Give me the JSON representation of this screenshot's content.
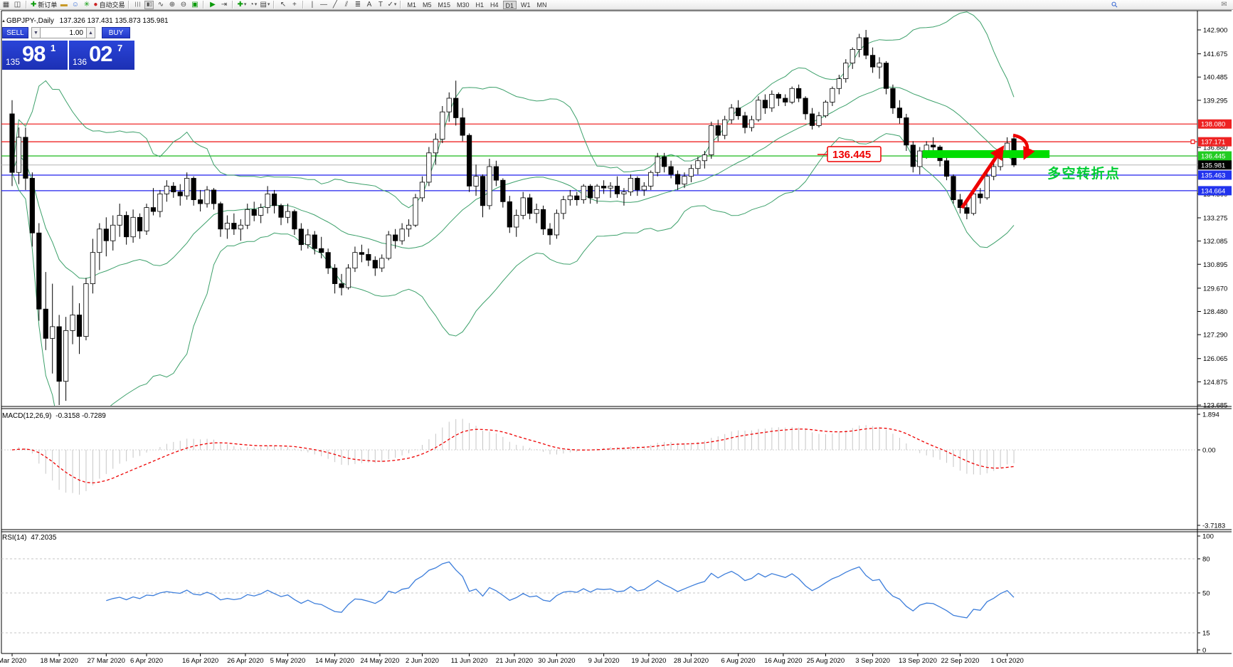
{
  "toolbar": {
    "new_order_label": "新订单",
    "autotrading_label": "自动交易",
    "timeframes": [
      "M1",
      "M5",
      "M15",
      "M30",
      "H1",
      "H4",
      "D1",
      "W1",
      "MN"
    ],
    "selected_timeframe": "D1"
  },
  "trade_panel": {
    "sell_label": "SELL",
    "buy_label": "BUY",
    "volume": "1.00",
    "sell_price_small": "135",
    "sell_price_big": "98",
    "sell_price_sup": "1",
    "buy_price_small": "136",
    "buy_price_big": "02",
    "buy_price_sup": "7"
  },
  "chart": {
    "symbol_period": "GBPJPY-,Daily",
    "ohlc_line": "137.326 137.431 135.873 135.981",
    "type": "candlestick",
    "price_axis": [
      "142.900",
      "141.675",
      "140.485",
      "139.295",
      "136.880",
      "134.500",
      "133.275",
      "132.085",
      "130.895",
      "129.670",
      "128.480",
      "127.290",
      "126.065",
      "124.875",
      "123.685"
    ],
    "levels": [
      {
        "price": 138.08,
        "label": "138.080",
        "line_color": "#ee1111",
        "badge": "#ee2222",
        "handle": false
      },
      {
        "price": 137.171,
        "label": "137.171",
        "line_color": "#ee1111",
        "badge": "#ee2222",
        "handle": true
      },
      {
        "price": 136.445,
        "label": "136.445",
        "line_color": "#00b000",
        "badge": "#22cc22",
        "handle": false
      },
      {
        "price": 135.463,
        "label": "135.463",
        "line_color": "#2222ee",
        "badge": "#2233ee",
        "handle": false
      },
      {
        "price": 134.664,
        "label": "134.664",
        "line_color": "#2222ee",
        "badge": "#2233ee",
        "handle": false
      }
    ],
    "current": {
      "price": 135.981,
      "label": "135.981",
      "line_color": "#b4b4b4",
      "badge": "#000000"
    },
    "time_axis": [
      [
        "Mar 2020",
        0
      ],
      [
        "18 Mar 2020",
        7
      ],
      [
        "27 Mar 2020",
        14
      ],
      [
        "6 Apr 2020",
        20
      ],
      [
        "16 Apr 2020",
        28
      ],
      [
        "26 Apr 2020",
        34.7
      ],
      [
        "5 May 2020",
        41
      ],
      [
        "14 May 2020",
        48
      ],
      [
        "24 May 2020",
        54.7
      ],
      [
        "2 Jun 2020",
        61
      ],
      [
        "11 Jun 2020",
        68
      ],
      [
        "21 Jun 2020",
        74.7
      ],
      [
        "30 Jun 2020",
        81
      ],
      [
        "9 Jul 2020",
        88
      ],
      [
        "19 Jul 2020",
        94.7
      ],
      [
        "28 Jul 2020",
        101
      ],
      [
        "6 Aug 2020",
        108
      ],
      [
        "16 Aug 2020",
        114.7
      ],
      [
        "25 Aug 2020",
        121
      ],
      [
        "3 Sep 2020",
        128
      ],
      [
        "13 Sep 2020",
        134.7
      ],
      [
        "22 Sep 2020",
        141
      ],
      [
        "1 Oct 2020",
        148
      ]
    ],
    "bollinger": {
      "period": 20,
      "deviation": 2,
      "color": "#3ca06a"
    },
    "candles": [
      [
        "09 Mar",
        138.6,
        139.3,
        134.9,
        135.6
      ],
      [
        "10 Mar",
        135.6,
        137.9,
        135.0,
        137.4
      ],
      [
        "11 Mar",
        137.4,
        137.9,
        134.7,
        135.3
      ],
      [
        "12 Mar",
        135.3,
        135.6,
        131.8,
        132.5
      ],
      [
        "13 Mar",
        132.5,
        133.0,
        128.0,
        128.6
      ],
      [
        "16 Mar",
        128.6,
        130.5,
        126.5,
        127.1
      ],
      [
        "17 Mar",
        127.1,
        129.9,
        125.3,
        127.7
      ],
      [
        "18 Mar",
        127.7,
        128.3,
        123.685,
        124.9
      ],
      [
        "19 Mar",
        124.9,
        128.2,
        123.9,
        127.5
      ],
      [
        "20 Mar",
        127.5,
        129.8,
        126.8,
        128.3
      ],
      [
        "23 Mar",
        128.3,
        128.9,
        126.3,
        127.2
      ],
      [
        "24 Mar",
        127.2,
        130.2,
        127.0,
        129.9
      ],
      [
        "25 Mar",
        129.9,
        132.2,
        129.4,
        131.5
      ],
      [
        "26 Mar",
        131.5,
        133.0,
        130.6,
        132.7
      ],
      [
        "27 Mar",
        132.7,
        133.3,
        131.3,
        132.1
      ],
      [
        "30 Mar",
        132.1,
        133.4,
        131.6,
        132.9
      ],
      [
        "31 Mar",
        132.9,
        134.0,
        132.3,
        133.4
      ],
      [
        "01 Apr",
        133.4,
        133.6,
        131.9,
        132.3
      ],
      [
        "02 Apr",
        132.3,
        133.7,
        132.0,
        133.3
      ],
      [
        "03 Apr",
        133.3,
        133.5,
        132.2,
        132.6
      ],
      [
        "06 Apr",
        132.6,
        134.0,
        132.4,
        133.8
      ],
      [
        "07 Apr",
        133.8,
        134.8,
        133.4,
        133.6
      ],
      [
        "08 Apr",
        133.6,
        134.7,
        133.3,
        134.5
      ],
      [
        "09 Apr",
        134.5,
        135.2,
        134.1,
        134.9
      ],
      [
        "10 Apr",
        134.9,
        135.1,
        134.3,
        134.6
      ],
      [
        "13 Apr",
        134.6,
        135.0,
        133.9,
        134.4
      ],
      [
        "14 Apr",
        134.4,
        135.6,
        134.2,
        135.3
      ],
      [
        "15 Apr",
        135.3,
        135.4,
        133.9,
        134.2
      ],
      [
        "16 Apr",
        134.2,
        134.7,
        133.6,
        134.0
      ],
      [
        "17 Apr",
        134.0,
        134.9,
        133.8,
        134.7
      ],
      [
        "20 Apr",
        134.7,
        134.8,
        133.7,
        134.0
      ],
      [
        "21 Apr",
        134.0,
        134.1,
        132.3,
        132.7
      ],
      [
        "22 Apr",
        132.7,
        133.4,
        132.2,
        133.0
      ],
      [
        "23 Apr",
        133.0,
        133.5,
        132.4,
        132.7
      ],
      [
        "24 Apr",
        132.7,
        133.2,
        132.1,
        132.9
      ],
      [
        "27 Apr",
        132.9,
        134.0,
        132.7,
        133.7
      ],
      [
        "28 Apr",
        133.7,
        134.1,
        133.1,
        133.4
      ],
      [
        "29 Apr",
        133.4,
        134.0,
        133.0,
        133.8
      ],
      [
        "30 Apr",
        133.8,
        134.9,
        133.5,
        134.5
      ],
      [
        "01 May",
        134.5,
        134.7,
        133.5,
        133.9
      ],
      [
        "04 May",
        133.9,
        134.0,
        132.9,
        133.3
      ],
      [
        "05 May",
        133.3,
        134.0,
        133.0,
        133.6
      ],
      [
        "06 May",
        133.6,
        133.7,
        132.4,
        132.7
      ],
      [
        "07 May",
        132.7,
        133.0,
        131.6,
        131.9
      ],
      [
        "08 May",
        131.9,
        132.7,
        131.7,
        132.4
      ],
      [
        "11 May",
        132.4,
        132.6,
        131.4,
        131.7
      ],
      [
        "12 May",
        131.7,
        132.3,
        131.2,
        131.5
      ],
      [
        "13 May",
        131.5,
        131.7,
        130.4,
        130.7
      ],
      [
        "14 May",
        130.7,
        130.9,
        129.4,
        129.9
      ],
      [
        "15 May",
        129.9,
        130.4,
        129.3,
        129.7
      ],
      [
        "18 May",
        129.7,
        130.9,
        129.6,
        130.7
      ],
      [
        "19 May",
        130.7,
        131.8,
        130.5,
        131.5
      ],
      [
        "20 May",
        131.5,
        131.9,
        131.0,
        131.4
      ],
      [
        "21 May",
        131.4,
        131.7,
        130.8,
        131.1
      ],
      [
        "22 May",
        131.1,
        131.3,
        130.3,
        130.7
      ],
      [
        "25 May",
        130.7,
        131.4,
        130.5,
        131.2
      ],
      [
        "26 May",
        131.2,
        132.6,
        131.1,
        132.4
      ],
      [
        "27 May",
        132.4,
        132.7,
        131.7,
        132.1
      ],
      [
        "28 May",
        132.1,
        133.0,
        131.9,
        132.7
      ],
      [
        "29 May",
        132.7,
        133.2,
        132.3,
        132.9
      ],
      [
        "01 Jun",
        132.9,
        134.5,
        132.8,
        134.3
      ],
      [
        "02 Jun",
        134.3,
        135.4,
        134.1,
        135.1
      ],
      [
        "03 Jun",
        135.1,
        136.9,
        134.9,
        136.6
      ],
      [
        "04 Jun",
        136.6,
        137.6,
        136.0,
        137.3
      ],
      [
        "05 Jun",
        137.3,
        139.0,
        137.1,
        138.7
      ],
      [
        "08 Jun",
        138.7,
        139.7,
        138.2,
        139.4
      ],
      [
        "09 Jun",
        139.4,
        140.3,
        138.0,
        138.4
      ],
      [
        "10 Jun",
        138.4,
        138.9,
        137.2,
        137.5
      ],
      [
        "11 Jun",
        137.5,
        137.6,
        134.6,
        134.9
      ],
      [
        "12 Jun",
        134.9,
        136.0,
        134.4,
        135.4
      ],
      [
        "15 Jun",
        135.4,
        135.5,
        133.3,
        133.9
      ],
      [
        "16 Jun",
        133.9,
        136.3,
        133.7,
        135.9
      ],
      [
        "17 Jun",
        135.9,
        136.2,
        134.9,
        135.2
      ],
      [
        "18 Jun",
        135.2,
        135.3,
        133.8,
        134.1
      ],
      [
        "19 Jun",
        134.1,
        134.4,
        132.5,
        132.8
      ],
      [
        "22 Jun",
        132.8,
        133.7,
        132.3,
        133.4
      ],
      [
        "23 Jun",
        133.4,
        134.6,
        133.2,
        134.3
      ],
      [
        "24 Jun",
        134.3,
        134.5,
        133.2,
        133.5
      ],
      [
        "25 Jun",
        133.5,
        134.0,
        133.0,
        133.7
      ],
      [
        "26 Jun",
        133.7,
        133.9,
        132.4,
        132.7
      ],
      [
        "29 Jun",
        132.7,
        133.0,
        131.9,
        132.4
      ],
      [
        "30 Jun",
        132.4,
        133.7,
        132.2,
        133.5
      ],
      [
        "01 Jul",
        133.5,
        134.4,
        133.2,
        134.2
      ],
      [
        "02 Jul",
        134.2,
        134.7,
        133.9,
        134.4
      ],
      [
        "03 Jul",
        134.4,
        134.6,
        133.9,
        134.2
      ],
      [
        "06 Jul",
        134.2,
        135.0,
        134.0,
        134.9
      ],
      [
        "07 Jul",
        134.9,
        135.0,
        134.0,
        134.3
      ],
      [
        "08 Jul",
        134.3,
        135.0,
        134.0,
        134.9
      ],
      [
        "09 Jul",
        134.9,
        135.2,
        134.5,
        134.8
      ],
      [
        "10 Jul",
        134.8,
        135.1,
        134.3,
        134.9
      ],
      [
        "13 Jul",
        134.9,
        135.4,
        134.3,
        134.5
      ],
      [
        "14 Jul",
        134.5,
        134.8,
        133.9,
        134.6
      ],
      [
        "15 Jul",
        134.6,
        135.5,
        134.4,
        135.3
      ],
      [
        "16 Jul",
        135.3,
        135.4,
        134.4,
        134.7
      ],
      [
        "17 Jul",
        134.7,
        135.1,
        134.4,
        134.9
      ],
      [
        "20 Jul",
        134.9,
        135.7,
        134.7,
        135.6
      ],
      [
        "21 Jul",
        135.6,
        136.6,
        135.4,
        136.4
      ],
      [
        "22 Jul",
        136.4,
        136.6,
        135.6,
        135.9
      ],
      [
        "23 Jul",
        135.9,
        136.2,
        135.3,
        135.5
      ],
      [
        "24 Jul",
        135.5,
        135.7,
        134.7,
        135.0
      ],
      [
        "27 Jul",
        135.0,
        135.6,
        134.8,
        135.4
      ],
      [
        "28 Jul",
        135.4,
        136.0,
        135.1,
        135.8
      ],
      [
        "29 Jul",
        135.8,
        136.4,
        135.5,
        136.2
      ],
      [
        "30 Jul",
        136.2,
        136.7,
        135.8,
        136.5
      ],
      [
        "31 Jul",
        136.5,
        138.2,
        136.3,
        138.0
      ],
      [
        "03 Aug",
        138.0,
        138.3,
        137.2,
        137.5
      ],
      [
        "04 Aug",
        137.5,
        138.5,
        137.3,
        138.3
      ],
      [
        "05 Aug",
        138.3,
        139.1,
        138.1,
        138.9
      ],
      [
        "06 Aug",
        138.9,
        139.3,
        138.3,
        138.5
      ],
      [
        "07 Aug",
        138.5,
        138.7,
        137.6,
        137.9
      ],
      [
        "10 Aug",
        137.9,
        138.5,
        137.7,
        138.3
      ],
      [
        "11 Aug",
        138.3,
        139.5,
        138.2,
        139.3
      ],
      [
        "12 Aug",
        139.3,
        139.6,
        138.6,
        138.9
      ],
      [
        "13 Aug",
        138.9,
        139.8,
        138.7,
        139.6
      ],
      [
        "14 Aug",
        139.6,
        139.7,
        139.0,
        139.4
      ],
      [
        "17 Aug",
        139.4,
        139.6,
        139.0,
        139.2
      ],
      [
        "18 Aug",
        139.2,
        140.0,
        139.1,
        139.9
      ],
      [
        "19 Aug",
        139.9,
        140.1,
        139.2,
        139.4
      ],
      [
        "20 Aug",
        139.4,
        139.5,
        138.3,
        138.6
      ],
      [
        "21 Aug",
        138.6,
        138.9,
        137.8,
        138.0
      ],
      [
        "24 Aug",
        138.0,
        138.7,
        137.9,
        138.5
      ],
      [
        "25 Aug",
        138.5,
        139.3,
        138.4,
        139.2
      ],
      [
        "26 Aug",
        139.2,
        140.0,
        139.0,
        139.9
      ],
      [
        "27 Aug",
        139.9,
        140.6,
        139.6,
        140.4
      ],
      [
        "28 Aug",
        140.4,
        141.4,
        140.2,
        141.2
      ],
      [
        "31 Aug",
        141.2,
        142.0,
        140.9,
        141.9
      ],
      [
        "01 Sep",
        141.9,
        142.7,
        141.5,
        142.5
      ],
      [
        "02 Sep",
        142.5,
        142.9,
        141.4,
        141.6
      ],
      [
        "03 Sep",
        141.6,
        142.0,
        140.7,
        141.0
      ],
      [
        "04 Sep",
        141.0,
        141.5,
        140.4,
        141.2
      ],
      [
        "07 Sep",
        141.2,
        141.3,
        139.6,
        139.9
      ],
      [
        "08 Sep",
        139.9,
        140.1,
        138.6,
        138.9
      ],
      [
        "09 Sep",
        138.9,
        139.3,
        138.1,
        138.4
      ],
      [
        "10 Sep",
        138.4,
        138.6,
        136.7,
        137.0
      ],
      [
        "11 Sep",
        137.0,
        137.2,
        135.6,
        135.9
      ],
      [
        "14 Sep",
        135.9,
        136.9,
        135.5,
        136.7
      ],
      [
        "15 Sep",
        136.7,
        137.2,
        136.3,
        137.0
      ],
      [
        "16 Sep",
        137.0,
        137.4,
        136.6,
        136.9
      ],
      [
        "17 Sep",
        136.9,
        137.0,
        135.9,
        136.2
      ],
      [
        "18 Sep",
        136.2,
        136.4,
        135.2,
        135.4
      ],
      [
        "21 Sep",
        135.4,
        135.5,
        134.0,
        134.2
      ],
      [
        "22 Sep",
        134.2,
        134.5,
        133.5,
        133.8
      ],
      [
        "23 Sep",
        133.8,
        134.1,
        133.2,
        133.5
      ],
      [
        "24 Sep",
        133.5,
        134.7,
        133.4,
        134.5
      ],
      [
        "25 Sep",
        134.5,
        134.8,
        134.0,
        134.3
      ],
      [
        "28 Sep",
        134.3,
        135.6,
        134.2,
        135.4
      ],
      [
        "29 Sep",
        135.4,
        136.1,
        135.2,
        135.9
      ],
      [
        "30 Sep",
        135.9,
        136.7,
        135.7,
        136.6
      ],
      [
        "01 Oct",
        136.6,
        137.4,
        136.4,
        137.1
      ],
      [
        "02 Oct",
        137.326,
        137.431,
        135.873,
        135.981
      ]
    ]
  },
  "macd": {
    "name": "MACD(12,26,9)",
    "values_line": "-0.3158 -0.7289",
    "macd_value": "-0.3158",
    "signal_value": "-0.7289",
    "axis": [
      "1.894",
      "0.00",
      "-3.7183"
    ],
    "histogram_color": "#c6c6c6",
    "signal_color": "#ee0000"
  },
  "rsi": {
    "name": "RSI(14)",
    "value": "47.2035",
    "axis": [
      "100",
      "80",
      "50",
      "15",
      "0"
    ],
    "levels": [
      80,
      50,
      15
    ],
    "line_color": "#3d7edb"
  },
  "annotations": {
    "price_label": "136.445",
    "turning_point_text": "多空转折点",
    "zone": {
      "i1": 135.4,
      "i2": 154.3,
      "p1": 136.74,
      "p2": 136.34,
      "color": "#00dd00"
    },
    "arrow_color": "#ee0000",
    "text_color": "#00cc33"
  }
}
